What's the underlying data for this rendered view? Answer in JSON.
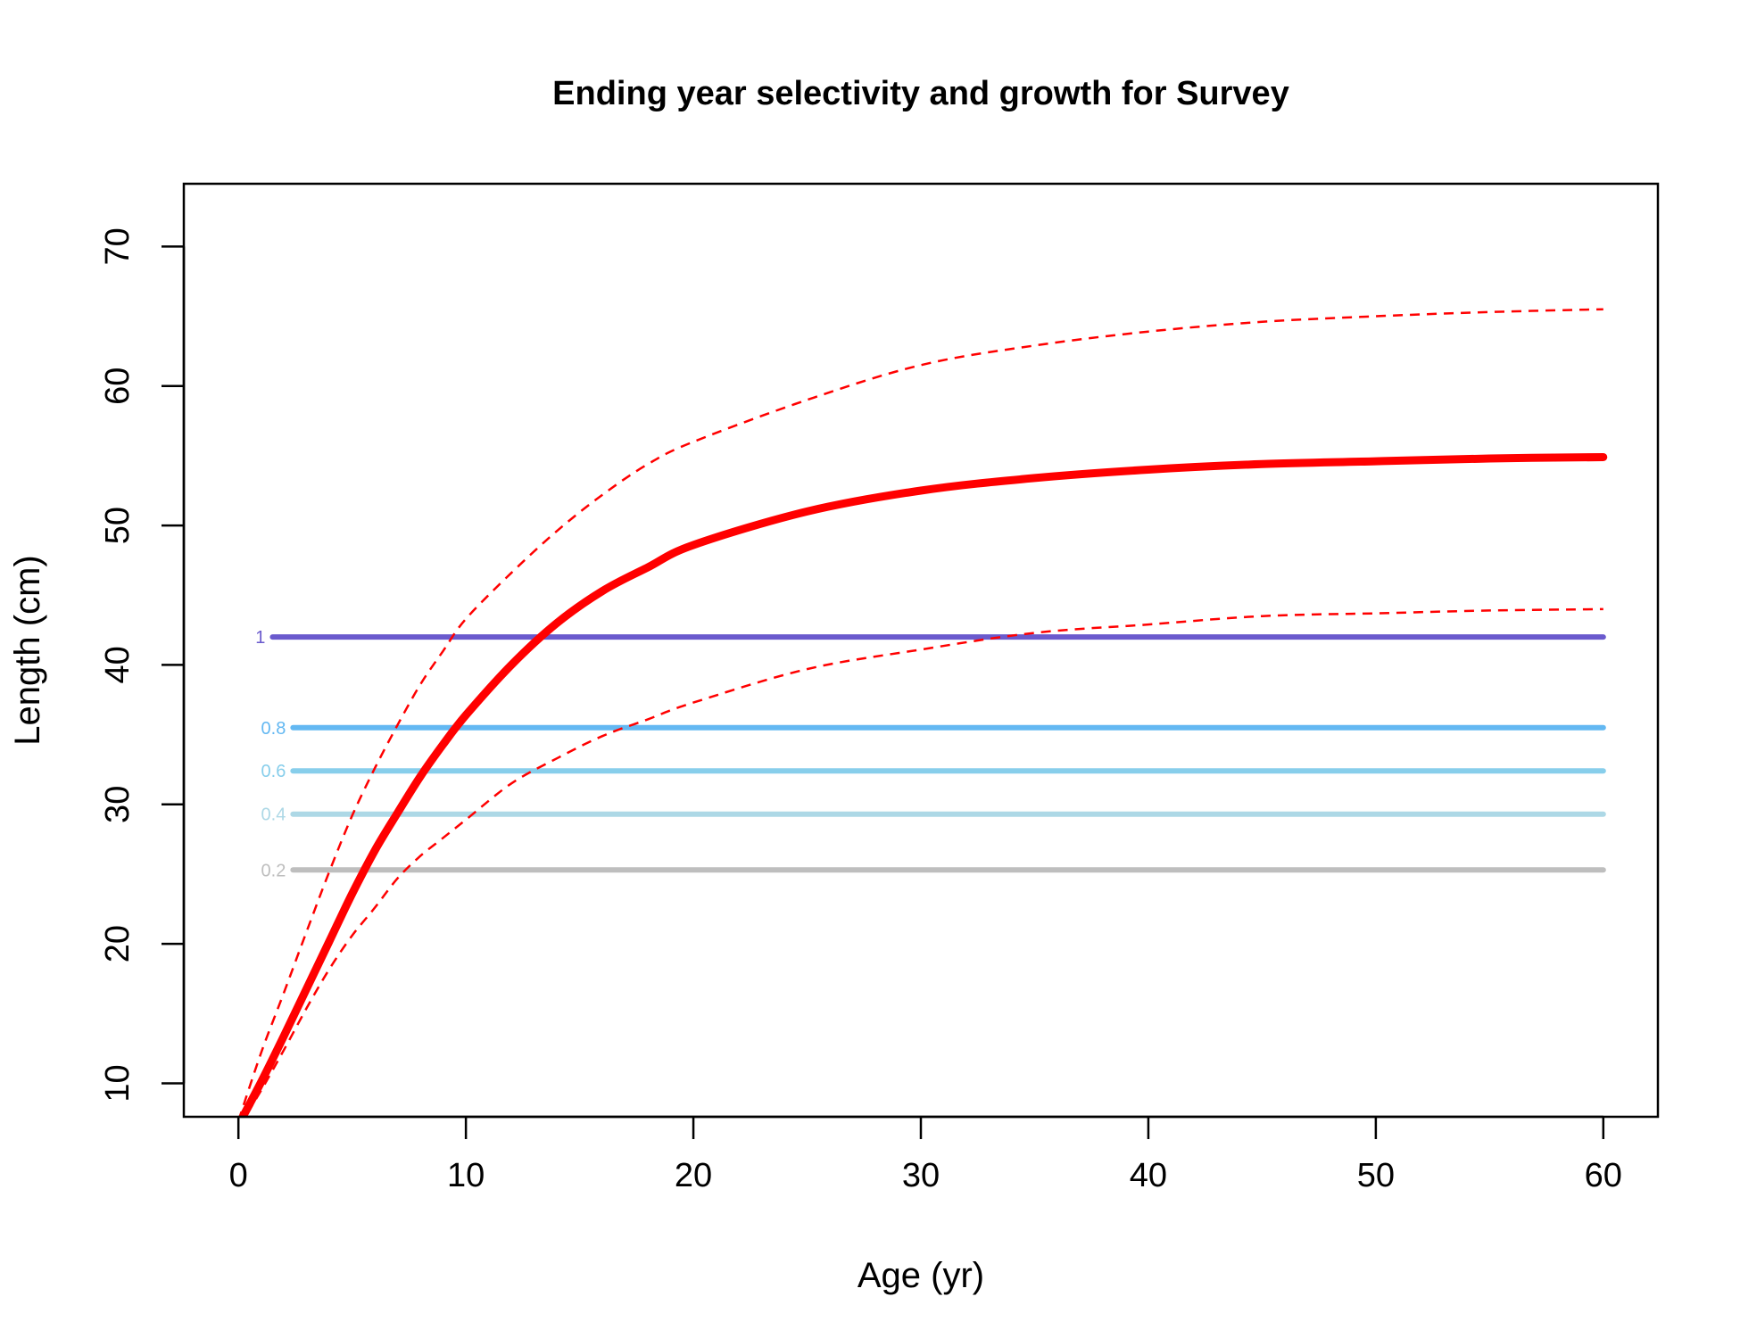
{
  "chart_data": {
    "type": "line",
    "title": "Ending year selectivity and growth for Survey",
    "xlabel": "Age (yr)",
    "ylabel": "Length (cm)",
    "xlim": [
      -2.4,
      62.4
    ],
    "ylim": [
      7.6,
      74.5
    ],
    "xticks": [
      0,
      10,
      20,
      30,
      40,
      50,
      60
    ],
    "yticks": [
      10,
      20,
      30,
      40,
      50,
      60,
      70
    ],
    "grid": false,
    "legend": "none",
    "growth": {
      "color": "#ff0000",
      "mean": {
        "x": [
          0,
          1,
          2,
          3,
          4,
          5,
          6,
          7,
          8,
          9,
          10,
          12,
          14,
          16,
          18,
          20,
          25,
          30,
          35,
          40,
          45,
          50,
          55,
          60
        ],
        "y": [
          7.0,
          10.1,
          13.4,
          16.8,
          20.2,
          23.6,
          26.7,
          29.4,
          32.0,
          34.3,
          36.4,
          40.0,
          43.0,
          45.3,
          47.0,
          48.6,
          51.0,
          52.5,
          53.4,
          54.0,
          54.4,
          54.6,
          54.8,
          54.9
        ]
      },
      "upper": {
        "x": [
          0,
          1,
          2,
          3,
          4,
          5,
          6,
          7,
          8,
          9,
          10,
          12,
          14,
          16,
          18,
          20,
          25,
          30,
          35,
          40,
          45,
          50,
          55,
          60
        ],
        "y": [
          7.3,
          12.2,
          16.5,
          20.9,
          25.2,
          29.2,
          32.6,
          35.7,
          38.6,
          41.0,
          43.3,
          46.6,
          49.6,
          52.2,
          54.4,
          56.0,
          59.0,
          61.5,
          62.9,
          63.9,
          64.6,
          65.0,
          65.3,
          65.5
        ]
      },
      "lower": {
        "x": [
          0,
          1,
          2,
          3,
          4,
          5,
          6,
          7,
          8,
          9,
          10,
          12,
          14,
          16,
          18,
          20,
          25,
          30,
          35,
          40,
          45,
          50,
          55,
          60
        ],
        "y": [
          6.8,
          9.5,
          12.4,
          15.4,
          18.2,
          20.6,
          22.6,
          24.7,
          26.3,
          27.6,
          28.9,
          31.5,
          33.3,
          34.9,
          36.1,
          37.3,
          39.7,
          41.1,
          42.3,
          42.9,
          43.5,
          43.7,
          43.9,
          44.0
        ]
      }
    },
    "selectivity_levels": [
      {
        "label": "1",
        "length": 42.0,
        "x_start": 1.5,
        "x_end": 60,
        "color": "#6a5acd"
      },
      {
        "label": "0.8",
        "length": 35.5,
        "x_start": 2.4,
        "x_end": 60,
        "color": "#63b8f2"
      },
      {
        "label": "0.6",
        "length": 32.4,
        "x_start": 2.4,
        "x_end": 60,
        "color": "#87ceeb"
      },
      {
        "label": "0.4",
        "length": 29.3,
        "x_start": 2.4,
        "x_end": 60,
        "color": "#add8e6"
      },
      {
        "label": "0.2",
        "length": 25.3,
        "x_start": 2.4,
        "x_end": 60,
        "color": "#bebebe"
      }
    ]
  }
}
